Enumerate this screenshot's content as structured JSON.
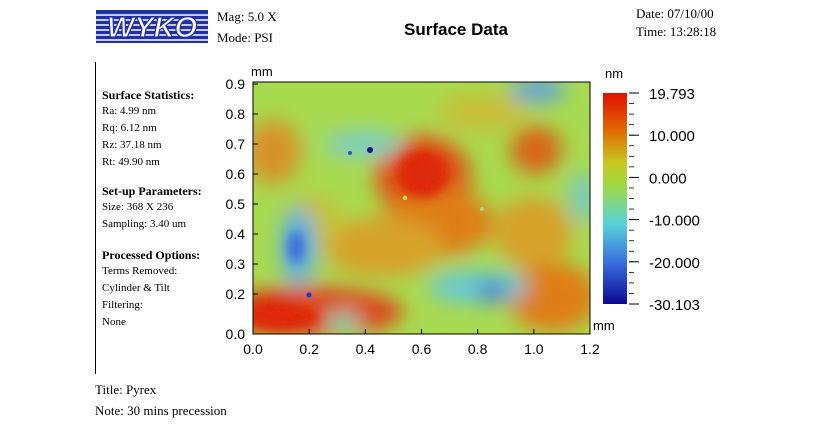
{
  "header": {
    "logo_text": "WYKO",
    "mag_label": "Mag:",
    "mag_value": "5.0 X",
    "mode_label": "Mode:",
    "mode_value": "PSI",
    "title": "Surface Data",
    "date_label": "Date:",
    "date_value": "07/10/00",
    "time_label": "Time:",
    "time_value": "13:28:18"
  },
  "panel": {
    "stats_heading": "Surface Statistics:",
    "stats": [
      "Ra:  4.99 nm",
      "Rq:  6.12 nm",
      "Rz:  37.18 nm",
      "Rt:  49.90 nm"
    ],
    "setup_heading": "Set-up Parameters:",
    "setup": [
      "Size: 368 X 236",
      "Sampling:  3.40 um"
    ],
    "processed_heading": "Processed Options:",
    "processed": [
      "Terms Removed:",
      "Cylinder & Tilt",
      "Filtering:",
      "None"
    ]
  },
  "plot": {
    "y_unit": "mm",
    "x_unit": "mm",
    "cb_unit": "nm",
    "y_ticks": [
      "0.9",
      "0.8",
      "0.7",
      "0.6",
      "0.5",
      "0.4",
      "0.3",
      "0.2",
      "0.0"
    ],
    "x_ticks": [
      "0.0",
      "0.2",
      "0.4",
      "0.6",
      "0.8",
      "1.0",
      "1.2"
    ],
    "cb_ticks": [
      "19.793",
      "10.000",
      "0.000",
      "-10.000",
      "-20.000",
      "-30.103"
    ],
    "colors": {
      "high": "#e02000",
      "mid_high": "#e07a00",
      "mid": "#9ad94a",
      "low_mid": "#5ad7d0",
      "low": "#2a5de0",
      "min": "#0a0a90"
    }
  },
  "footer": {
    "title_label": "Title:",
    "title_value": "Pyrex",
    "note_label": "Note:",
    "note_value": "30 mins precession"
  }
}
